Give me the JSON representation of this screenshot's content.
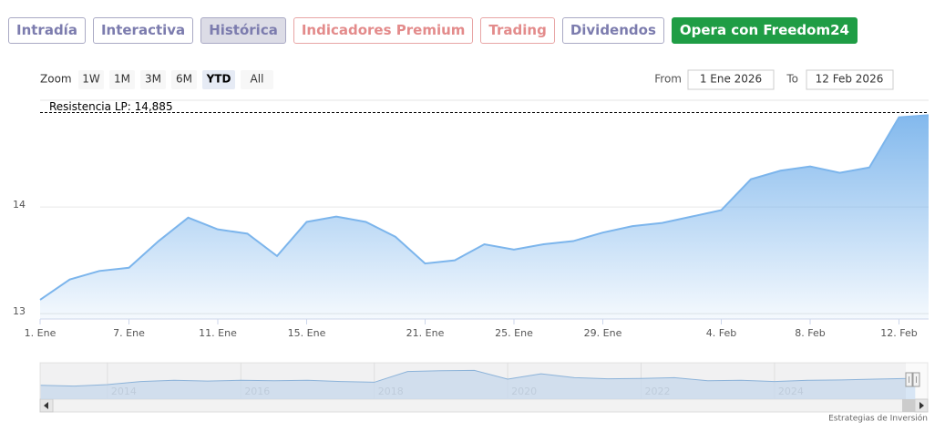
{
  "tabs": [
    "Intradía",
    "Interactiva",
    "Histórica",
    "Indicadores Premium",
    "Trading",
    "Dividendos",
    "Opera con Freedom24"
  ],
  "zoom": {
    "label": "Zoom",
    "buttons": [
      "1W",
      "1M",
      "3M",
      "6M",
      "YTD",
      "All"
    ]
  },
  "range": {
    "from_label": "From",
    "from": "1 Ene 2026",
    "to_label": "To",
    "to": "12 Feb 2026"
  },
  "chart_data": {
    "type": "area",
    "color": "#7cb5ec",
    "grid": true,
    "categories": [
      "1. Ene",
      null,
      null,
      "7. Ene",
      null,
      null,
      "11. Ene",
      null,
      null,
      "15. Ene",
      null,
      null,
      null,
      "21. Ene",
      null,
      null,
      "25. Ene",
      null,
      null,
      "29. Ene",
      null,
      null,
      null,
      "4. Feb",
      null,
      null,
      "8. Feb",
      null,
      null,
      "12. Feb",
      null
    ],
    "values": [
      13.13,
      13.32,
      13.4,
      13.43,
      13.68,
      13.9,
      13.79,
      13.75,
      13.54,
      13.86,
      13.91,
      13.86,
      13.72,
      13.47,
      13.5,
      13.65,
      13.6,
      13.65,
      13.68,
      13.76,
      13.82,
      13.85,
      13.91,
      13.97,
      14.26,
      14.34,
      14.38,
      14.32,
      14.37,
      14.84,
      14.86
    ],
    "ylim": [
      12.95,
      15.0
    ],
    "yticks": [
      13,
      14
    ],
    "resistance": {
      "label": "Resistencia LP: 14,885",
      "value": 14.885
    }
  },
  "navigator": {
    "xlim": [
      2012.99,
      2026.16
    ],
    "years": [
      2014,
      2016,
      2018,
      2020,
      2022,
      2024
    ],
    "ylim": [
      8,
      17
    ],
    "x": [
      2013,
      2013.5,
      2014,
      2014.5,
      2015,
      2015.5,
      2016,
      2016.5,
      2017,
      2017.5,
      2018,
      2018.5,
      2019,
      2019.5,
      2020,
      2020.5,
      2021,
      2021.5,
      2022,
      2022.5,
      2023,
      2023.5,
      2024,
      2024.5,
      2025,
      2025.5,
      2026,
      2026.11
    ],
    "values": [
      11.6,
      11.4,
      11.8,
      12.6,
      12.9,
      12.7,
      12.9,
      12.8,
      12.9,
      12.6,
      12.4,
      15.2,
      15.4,
      15.5,
      13.2,
      14.6,
      13.6,
      13.3,
      13.4,
      13.6,
      12.8,
      12.9,
      12.6,
      12.9,
      13.0,
      13.2,
      13.4,
      14.86
    ]
  },
  "footer": "Estrategias de Inversión"
}
